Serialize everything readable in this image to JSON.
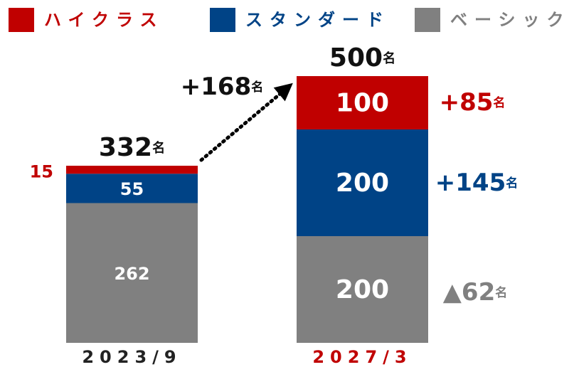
{
  "chart_data": {
    "type": "stacked_bar",
    "categories": [
      "2023/9",
      "2027/3"
    ],
    "category_colors": [
      "#222222",
      "#c00000"
    ],
    "series": [
      {
        "name": "ハイクラス",
        "color": "#c00000",
        "values": [
          15,
          100
        ]
      },
      {
        "name": "スタンダード",
        "color": "#004386",
        "values": [
          55,
          200
        ]
      },
      {
        "name": "ベーシック",
        "color": "#808080",
        "values": [
          262,
          200
        ]
      }
    ],
    "totals": [
      332,
      500
    ],
    "unit": "名",
    "ylim": [
      0,
      500
    ],
    "annotations": [
      {
        "text": "+168",
        "unit": "名",
        "color": "#111111"
      },
      {
        "text": "+85",
        "unit": "名",
        "color": "#c00000"
      },
      {
        "text": "+145",
        "unit": "名",
        "color": "#004386"
      },
      {
        "text": "▲62",
        "unit": "名",
        "color": "#808080"
      }
    ]
  }
}
